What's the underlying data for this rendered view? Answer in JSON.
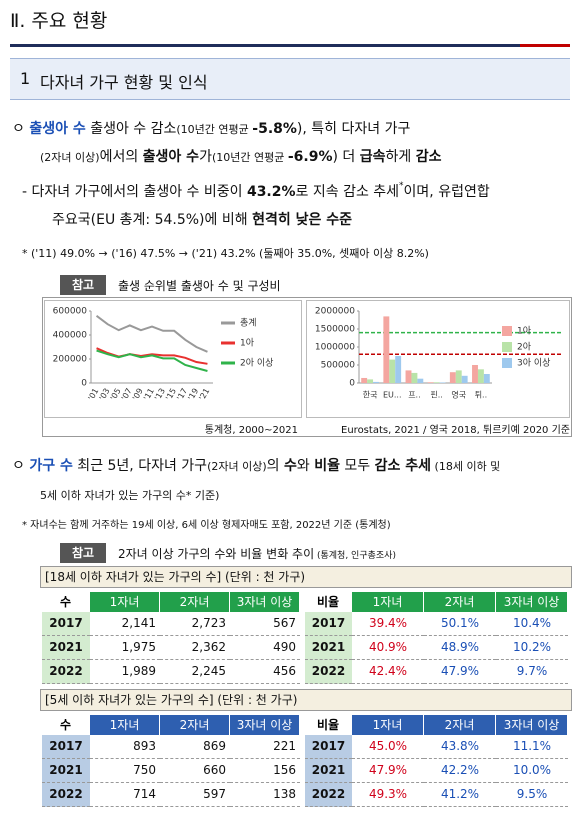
{
  "header": {
    "title": "Ⅱ. 주요 현황"
  },
  "section": {
    "number": "1",
    "title": "다자녀 가구 현황 및 인식"
  },
  "bullets": [
    {
      "marker": "ㅇ",
      "lines": [
        [
          "출생아 수",
          " 출생아 수 감소",
          "(10년간 연평균 ",
          "-5.8%",
          "), 특히 다자녀 가구"
        ],
        [
          "(2자녀 이상)",
          "에서의 ",
          "출생아 수",
          "가",
          "(10년간 연평균 ",
          "-6.9%",
          ") 더 ",
          "급속",
          "하게 ",
          "감소"
        ]
      ],
      "sub": {
        "lines": [
          [
            "- 다자녀 가구에서의 출생아 수 비중이 ",
            "43.2%",
            "로 지속 감소 추세",
            "*",
            "이며, 유럽연합"
          ],
          [
            "주요국(EU 총계: 54.5%)에 비해 ",
            "현격히 낮은 수준"
          ]
        ]
      },
      "note": "* ('11) 49.0% → ('16) 47.5% → ('21) 43.2% (둘째아 35.0%, 셋째아 이상 8.2%)",
      "reference": {
        "label": "참고",
        "title": "출생 순위별 출생아 수 및 구성비"
      }
    },
    {
      "marker": "ㅇ",
      "lines": [
        [
          "가구 수",
          " 최근 5년, 다자녀 가구",
          "(2자녀 이상)",
          "의 ",
          "수",
          "와 ",
          "비율",
          " 모두 ",
          "감소 추세",
          " (18세 이하 및"
        ],
        [
          "5세 이하 자녀가 있는 가구의 수* 기준)"
        ]
      ],
      "note": "* 자녀수는 함께 거주하는 19세 이상, 6세 이상 형제자매도 포함, 2022년 기준 (통계청)",
      "reference": {
        "label": "참고",
        "title": "2자녀 이상 가구의 수와 비율 변화 추이",
        "source": " (통계청, 인구총조사)"
      }
    }
  ],
  "chart_data": [
    {
      "type": "line",
      "source": "통계청, 2000~2021",
      "categories": [
        "'01",
        "'03",
        "'05",
        "'07",
        "'09",
        "'11",
        "'13",
        "'15",
        "'17",
        "'19",
        "'21"
      ],
      "ylim": [
        0,
        600000
      ],
      "yticks": [
        0,
        200000,
        400000,
        600000
      ],
      "grid": false,
      "series": [
        {
          "name": "총계",
          "color": "#999999",
          "values": [
            560000,
            490000,
            440000,
            480000,
            440000,
            470000,
            435000,
            435000,
            360000,
            300000,
            260000
          ]
        },
        {
          "name": "1아",
          "color": "#e8312f",
          "values": [
            290000,
            250000,
            220000,
            240000,
            225000,
            240000,
            230000,
            230000,
            210000,
            175000,
            160000
          ]
        },
        {
          "name": "2아 이상",
          "color": "#2fb34a",
          "values": [
            270000,
            240000,
            215000,
            240000,
            215000,
            230000,
            205000,
            205000,
            150000,
            125000,
            100000
          ]
        }
      ]
    },
    {
      "type": "bar",
      "source": "Eurostats, 2021 / 영국 2018, 튀르키예 2020 기준",
      "categories": [
        "한국",
        "EU...",
        "프..",
        "핀..",
        "영국",
        "튀.."
      ],
      "ylim": [
        0,
        2000000
      ],
      "yticks": [
        0,
        500000,
        1000000,
        1500000,
        2000000
      ],
      "grid": false,
      "reference_lines": [
        {
          "value": 1400000,
          "color": "#2fb34a"
        },
        {
          "value": 800000,
          "color": "#c00000"
        }
      ],
      "series": [
        {
          "name": "1아",
          "color": "#f4a6a0",
          "values": [
            140000,
            1850000,
            350000,
            20000,
            300000,
            500000
          ]
        },
        {
          "name": "2아",
          "color": "#b9e3a8",
          "values": [
            100000,
            650000,
            280000,
            20000,
            350000,
            380000
          ]
        },
        {
          "name": "3아 이상",
          "color": "#9ec9ee",
          "values": [
            30000,
            750000,
            120000,
            15000,
            200000,
            250000
          ]
        }
      ]
    }
  ],
  "tables": [
    {
      "title": "[18세 이하 자녀가 있는 가구의 수] (단위 : 천 가구)",
      "count_header": [
        "수",
        "1자녀",
        "2자녀",
        "3자녀 이상"
      ],
      "ratio_header": [
        "비율",
        "1자녀",
        "2자녀",
        "3자녀 이상"
      ],
      "rows": [
        {
          "year": "2017",
          "counts": [
            "2,141",
            "2,723",
            "567"
          ],
          "ratios": [
            "39.4%",
            "50.1%",
            "10.4%"
          ]
        },
        {
          "year": "2021",
          "counts": [
            "1,975",
            "2,362",
            "490"
          ],
          "ratios": [
            "40.9%",
            "48.9%",
            "10.2%"
          ]
        },
        {
          "year": "2022",
          "counts": [
            "1,989",
            "2,245",
            "456"
          ],
          "ratios": [
            "42.4%",
            "47.9%",
            "9.7%"
          ]
        }
      ]
    },
    {
      "title": "[5세 이하 자녀가 있는 가구의 수] (단위 : 천 가구)",
      "count_header": [
        "수",
        "1자녀",
        "2자녀",
        "3자녀 이상"
      ],
      "ratio_header": [
        "비율",
        "1자녀",
        "2자녀",
        "3자녀 이상"
      ],
      "rows": [
        {
          "year": "2017",
          "counts": [
            "893",
            "869",
            "221"
          ],
          "ratios": [
            "45.0%",
            "43.8%",
            "11.1%"
          ]
        },
        {
          "year": "2021",
          "counts": [
            "750",
            "660",
            "156"
          ],
          "ratios": [
            "47.9%",
            "42.2%",
            "10.0%"
          ]
        },
        {
          "year": "2022",
          "counts": [
            "714",
            "597",
            "138"
          ],
          "ratios": [
            "49.3%",
            "41.2%",
            "9.5%"
          ]
        }
      ]
    }
  ]
}
